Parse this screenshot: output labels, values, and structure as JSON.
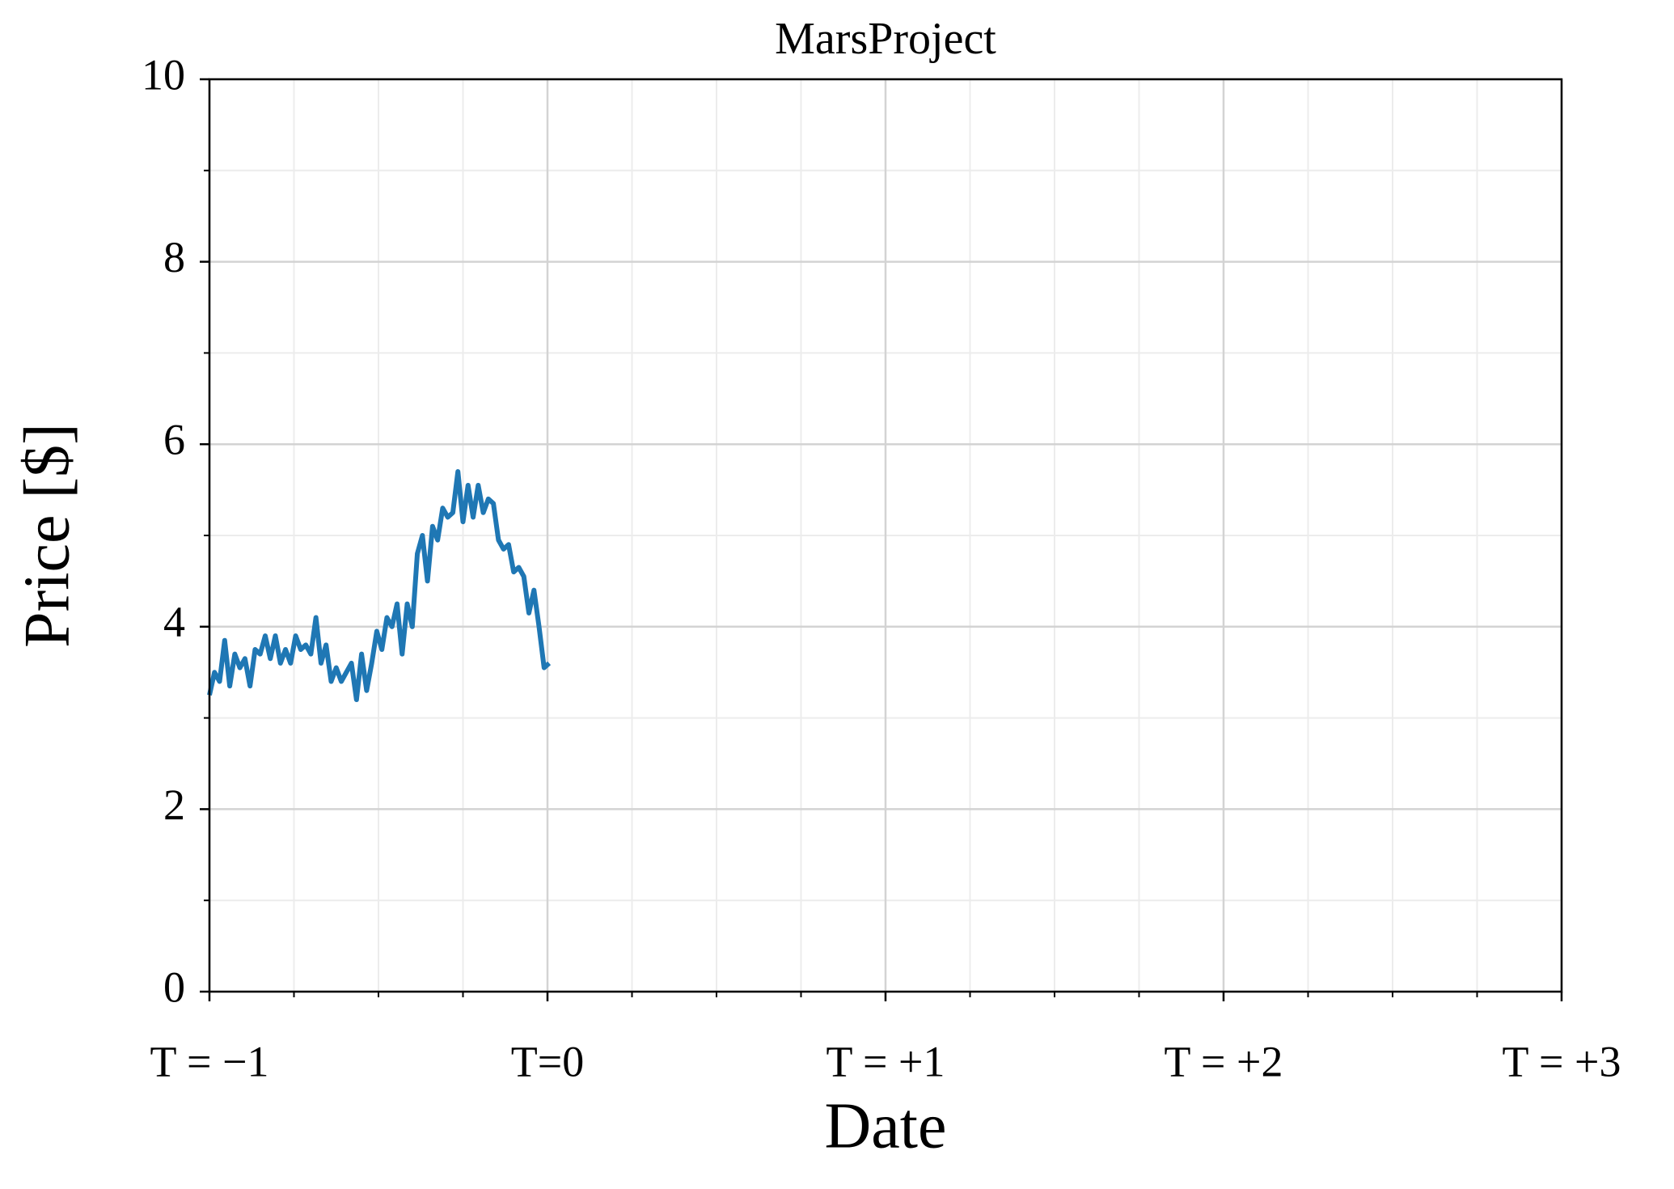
{
  "chart_data": {
    "type": "line",
    "title": "MarsProject",
    "x_label": "Date",
    "y_label": "Price [$]",
    "x": [
      -1,
      -0.985,
      -0.97,
      -0.955,
      -0.94,
      -0.925,
      -0.91,
      -0.895,
      -0.88,
      -0.865,
      -0.85,
      -0.835,
      -0.82,
      -0.805,
      -0.79,
      -0.775,
      -0.76,
      -0.745,
      -0.73,
      -0.715,
      -0.7,
      -0.685,
      -0.67,
      -0.655,
      -0.64,
      -0.625,
      -0.61,
      -0.595,
      -0.58,
      -0.565,
      -0.55,
      -0.535,
      -0.52,
      -0.505,
      -0.49,
      -0.475,
      -0.46,
      -0.445,
      -0.43,
      -0.415,
      -0.4,
      -0.385,
      -0.37,
      -0.355,
      -0.34,
      -0.325,
      -0.31,
      -0.295,
      -0.28,
      -0.265,
      -0.25,
      -0.235,
      -0.22,
      -0.205,
      -0.19,
      -0.175,
      -0.16,
      -0.145,
      -0.13,
      -0.115,
      -0.1,
      -0.085,
      -0.07,
      -0.055,
      -0.04,
      -0.025,
      -0.01,
      0.005
    ],
    "series": [
      {
        "color": "#1f77b4",
        "values": [
          3.25,
          3.5,
          3.4,
          3.85,
          3.35,
          3.7,
          3.55,
          3.65,
          3.35,
          3.75,
          3.7,
          3.9,
          3.65,
          3.9,
          3.6,
          3.75,
          3.6,
          3.9,
          3.75,
          3.8,
          3.7,
          4.1,
          3.6,
          3.8,
          3.4,
          3.55,
          3.4,
          3.5,
          3.6,
          3.2,
          3.7,
          3.3,
          3.6,
          3.95,
          3.75,
          4.1,
          4.0,
          4.25,
          3.7,
          4.25,
          4.0,
          4.8,
          5.0,
          4.5,
          5.1,
          4.95,
          5.3,
          5.2,
          5.25,
          5.7,
          5.15,
          5.55,
          5.2,
          5.55,
          5.25,
          5.4,
          5.35,
          4.95,
          4.85,
          4.9,
          4.6,
          4.65,
          4.55,
          4.15,
          4.4,
          4.0,
          3.55,
          3.6
        ]
      }
    ],
    "xlim": [
      -1,
      3
    ],
    "ylim": [
      0,
      10
    ],
    "xticks": [
      {
        "value": -1,
        "label": "T = −1"
      },
      {
        "value": 0,
        "label": "T=0"
      },
      {
        "value": 1,
        "label": "T = +1"
      },
      {
        "value": 2,
        "label": "T = +2"
      },
      {
        "value": 3,
        "label": "T = +3"
      }
    ],
    "yticks": [
      0,
      2,
      4,
      6,
      8,
      10
    ],
    "x_minor_ticks": [
      -0.75,
      -0.5,
      -0.25,
      0.25,
      0.5,
      0.75,
      1.25,
      1.5,
      1.75,
      2.25,
      2.5,
      2.75
    ],
    "y_minor_ticks": [
      1,
      3,
      5,
      7,
      9
    ],
    "grid": true
  }
}
